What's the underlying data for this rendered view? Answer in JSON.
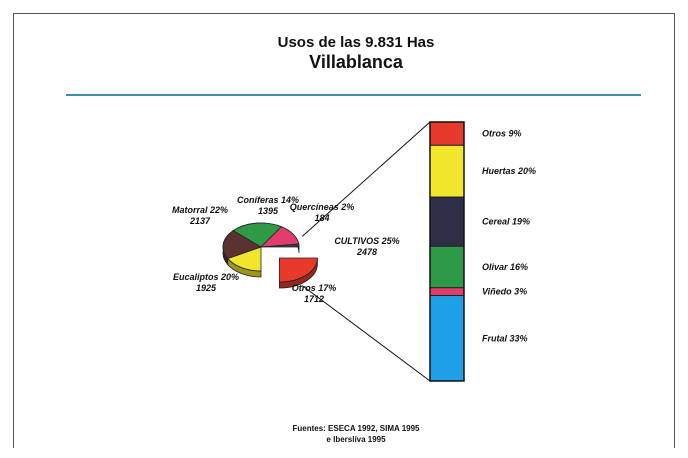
{
  "chart_data": {
    "type": "pie",
    "title": "Usos de las 9.831 Has",
    "subtitle": "Villablanca",
    "source_line1": "Fuentes: ESECA 1992, SIMA 1995",
    "source_line2": "e Iberslíva 1995",
    "colors": {
      "accent_line": "#3a8db0"
    },
    "pie_slices": [
      {
        "key": "otros",
        "label": "Otros 17%",
        "value_label": "1712",
        "percent": 17,
        "value": 1712,
        "color": "#f2e62c"
      },
      {
        "key": "eucaliptos",
        "label": "Eucaliptos 20%",
        "value_label": "1925",
        "percent": 20,
        "value": 1925,
        "color": "#5a3230"
      },
      {
        "key": "matorral",
        "label": "Matorral 22%",
        "value_label": "2137",
        "percent": 22,
        "value": 2137,
        "color": "#2f9a45"
      },
      {
        "key": "coniferas",
        "label": "Coníferas 14%",
        "value_label": "1395",
        "percent": 14,
        "value": 1395,
        "color": "#e03c6c"
      },
      {
        "key": "quercineas",
        "label": "Quercíneas 2%",
        "value_label": "184",
        "percent": 2,
        "value": 184,
        "color": "#3a3a58"
      },
      {
        "key": "cultivos",
        "label": "CULTIVOS 25%",
        "value_label": "2478",
        "percent": 25,
        "value": 2478,
        "color": "#e83a2c"
      }
    ],
    "bar_segments": [
      {
        "key": "otros",
        "label": "Otros 9%",
        "percent": 9,
        "color": "#e83a2c"
      },
      {
        "key": "huertas",
        "label": "Huertas 20%",
        "percent": 20,
        "color": "#f2e62c"
      },
      {
        "key": "cereal",
        "label": "Cereal 19%",
        "percent": 19,
        "color": "#2e2e48"
      },
      {
        "key": "olivar",
        "label": "Olivar 16%",
        "percent": 16,
        "color": "#2f9a45"
      },
      {
        "key": "vinedo",
        "label": "Viñedo 3%",
        "percent": 3,
        "color": "#e03c6c"
      },
      {
        "key": "frutal",
        "label": "Frutal 33%",
        "percent": 33,
        "color": "#1ea0e6"
      }
    ]
  }
}
